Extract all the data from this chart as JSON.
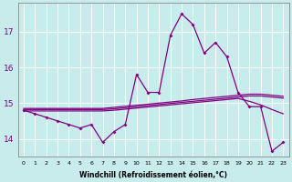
{
  "xlabel": "Windchill (Refroidissement éolien,°C)",
  "background_color": "#c8ecec",
  "grid_color": "#ffffff",
  "line_color": "#800080",
  "hours": [
    0,
    1,
    2,
    3,
    4,
    5,
    6,
    7,
    8,
    9,
    10,
    11,
    12,
    13,
    14,
    15,
    16,
    17,
    18,
    19,
    20,
    21,
    22,
    23
  ],
  "line_main": [
    14.8,
    14.7,
    14.6,
    14.5,
    14.4,
    14.3,
    14.4,
    13.9,
    14.2,
    14.4,
    15.8,
    15.3,
    15.3,
    16.9,
    17.5,
    17.2,
    16.4,
    16.7,
    16.3,
    15.3,
    14.9,
    14.9,
    13.65,
    13.9
  ],
  "line_trend1": [
    14.85,
    14.85,
    14.85,
    14.85,
    14.85,
    14.85,
    14.85,
    14.85,
    14.88,
    14.91,
    14.94,
    14.97,
    15.0,
    15.03,
    15.06,
    15.1,
    15.13,
    15.16,
    15.19,
    15.22,
    15.25,
    15.25,
    15.22,
    15.19
  ],
  "line_trend2": [
    14.82,
    14.82,
    14.82,
    14.82,
    14.82,
    14.82,
    14.82,
    14.82,
    14.84,
    14.87,
    14.9,
    14.93,
    14.96,
    14.99,
    15.02,
    15.05,
    15.08,
    15.11,
    15.14,
    15.17,
    15.2,
    15.2,
    15.17,
    15.14
  ],
  "line_trend3": [
    14.78,
    14.78,
    14.78,
    14.78,
    14.78,
    14.78,
    14.78,
    14.78,
    14.8,
    14.83,
    14.86,
    14.89,
    14.92,
    14.95,
    14.98,
    15.01,
    15.04,
    15.07,
    15.1,
    15.13,
    15.05,
    14.95,
    14.82,
    14.7
  ],
  "ylim": [
    13.5,
    17.8
  ],
  "yticks": [
    14,
    15,
    16,
    17
  ],
  "xlim": [
    -0.5,
    23.5
  ]
}
